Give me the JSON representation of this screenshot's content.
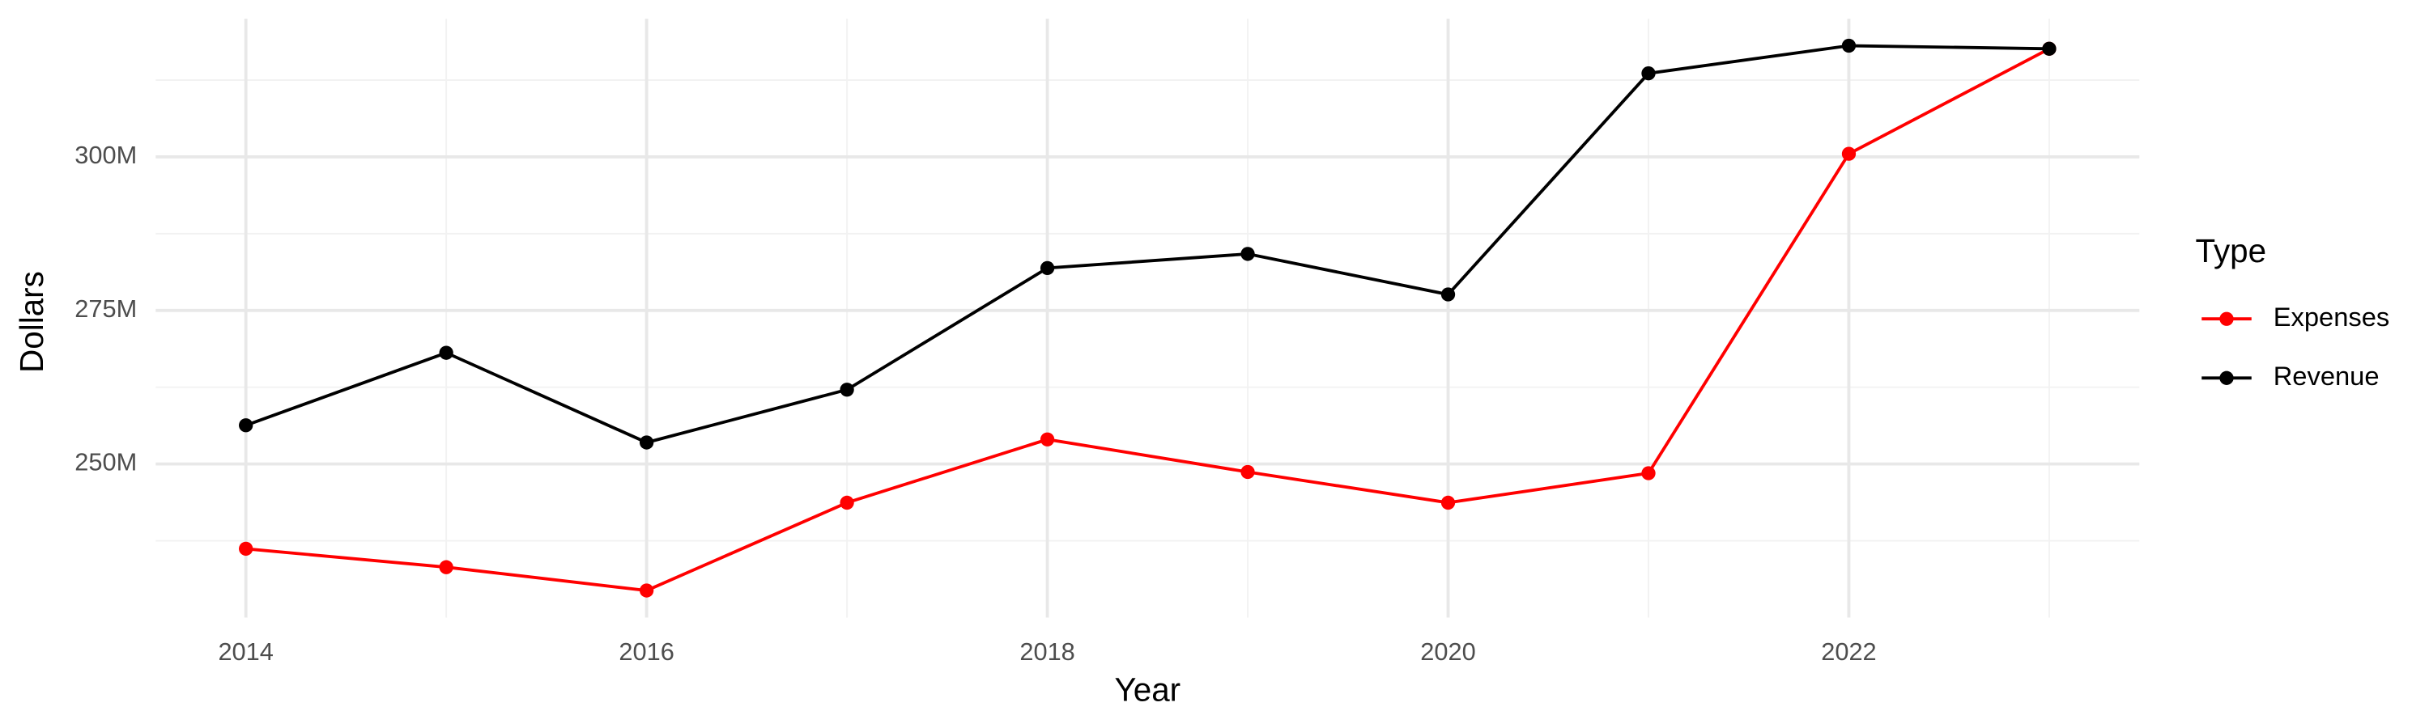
{
  "chart_data": {
    "type": "line",
    "x_label": "Year",
    "y_label": "Dollars",
    "legend_title": "Type",
    "x": [
      2014,
      2015,
      2016,
      2017,
      2018,
      2019,
      2020,
      2021,
      2022,
      2023
    ],
    "series": [
      {
        "name": "Expenses",
        "color": "#ff0000",
        "values": [
          236200000,
          233200000,
          229400000,
          243700000,
          254000000,
          248700000,
          243700000,
          248500000,
          300500000,
          317600000
        ]
      },
      {
        "name": "Revenue",
        "color": "#000000",
        "values": [
          256300000,
          268100000,
          253500000,
          262100000,
          281900000,
          284200000,
          277600000,
          313600000,
          318100000,
          317600000
        ]
      }
    ],
    "xlim": [
      2013.55,
      2023.45
    ],
    "ylim": [
      225000000,
      322500000
    ],
    "xticks": [
      2014,
      2016,
      2018,
      2020,
      2022
    ],
    "minor_xticks": [
      2015,
      2017,
      2019,
      2021,
      2023
    ],
    "yticks": [
      {
        "value": 250000000,
        "label": "250M"
      },
      {
        "value": 275000000,
        "label": "275M"
      },
      {
        "value": 300000000,
        "label": "300M"
      }
    ],
    "minor_yticks": [
      237500000,
      262500000,
      287500000,
      312500000
    ],
    "grid": true,
    "legend": "right"
  }
}
